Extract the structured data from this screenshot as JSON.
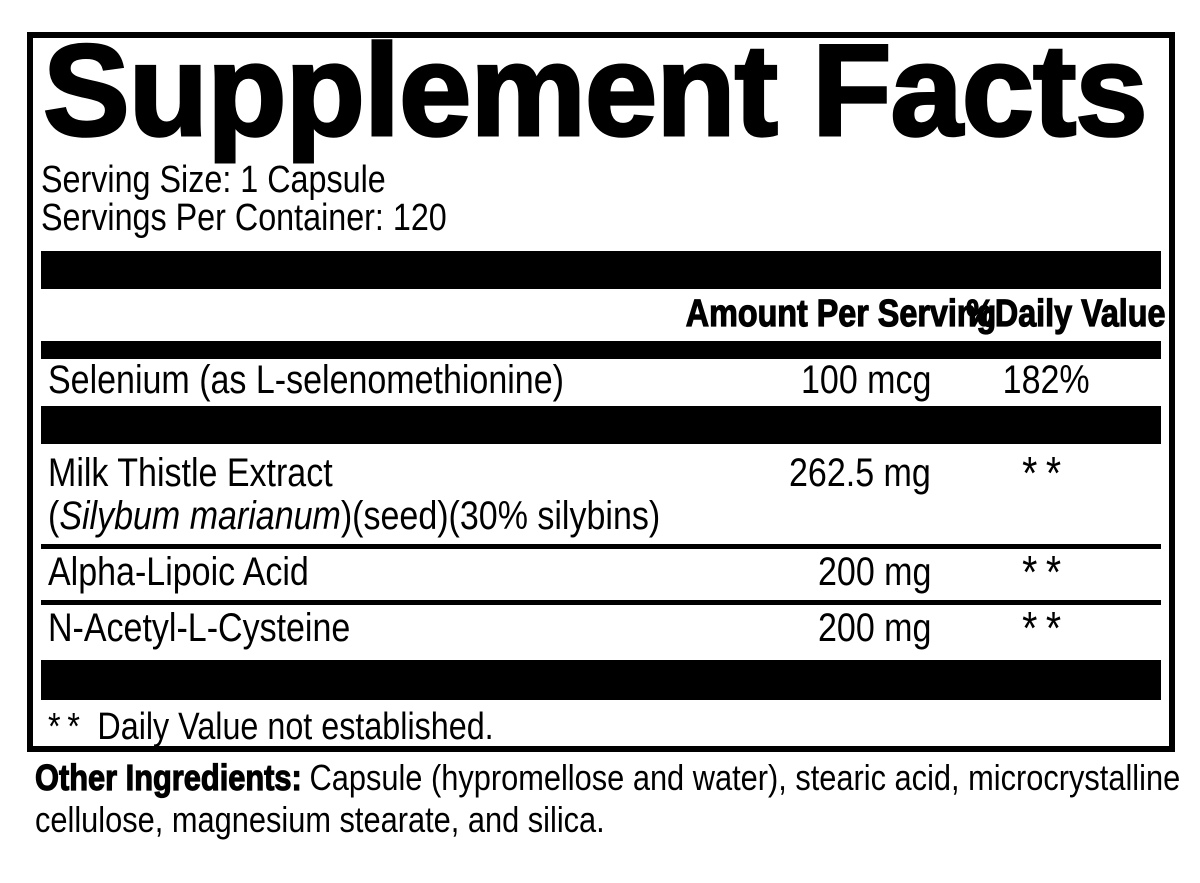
{
  "colors": {
    "ink": "#000000",
    "background": "#ffffff"
  },
  "panel": {
    "title": "Supplement Facts",
    "serving_size": "Serving Size: 1 Capsule",
    "servings_per_container": "Servings Per Container: 120",
    "header": {
      "amount": "Amount Per Serving",
      "daily_value": "%Daily Value"
    },
    "rows": [
      {
        "name": "Selenium (as L-selenomethionine)",
        "amount": "100 mcg",
        "daily_value": "182%"
      },
      {
        "name": "Milk Thistle Extract",
        "detail_open": "(",
        "detail_italic": "Silybum marianum",
        "detail_rest": ")(seed)(30% silybins)",
        "amount": "262.5 mg",
        "daily_value": "**"
      },
      {
        "name": "Alpha-Lipoic Acid",
        "amount": "200 mg",
        "daily_value": "**"
      },
      {
        "name": "N-Acetyl-L-Cysteine",
        "amount": "200 mg",
        "daily_value": "**"
      }
    ],
    "footnote": {
      "symbol": "**",
      "text": "Daily Value not established."
    }
  },
  "other_ingredients": {
    "label": "Other Ingredients:",
    "text": "Capsule (hypromellose and water), stearic acid, microcrystalline cellulose, magnesium stearate, and silica."
  }
}
